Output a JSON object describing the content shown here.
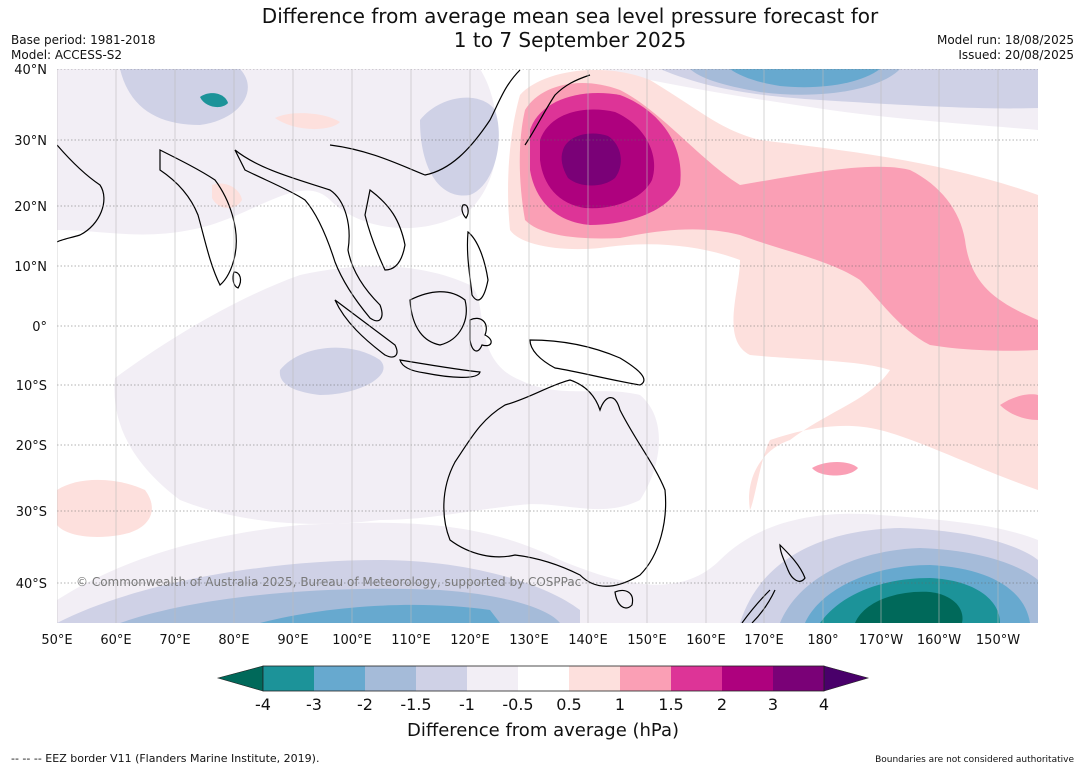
{
  "title_line1": "Difference from average mean sea level pressure forecast for",
  "title_line2": "1 to 7 September 2025",
  "base_period": "Base period: 1981-2018",
  "model": "Model: ACCESS-S2",
  "model_run": "Model run: 18/08/2025",
  "issued": "Issued: 20/08/2025",
  "copyright": "© Commonwealth of Australia 2025, Bureau of Meteorology, supported by COSPPac",
  "lat_labels": [
    "40°N",
    "30°N",
    "20°N",
    "10°N",
    "0°",
    "10°S",
    "20°S",
    "30°S",
    "40°S"
  ],
  "lon_labels": [
    "50°E",
    "60°E",
    "70°E",
    "80°E",
    "90°E",
    "100°E",
    "110°E",
    "120°E",
    "130°E",
    "140°E",
    "150°E",
    "160°E",
    "170°E",
    "180°",
    "170°W",
    "160°W",
    "150°W"
  ],
  "colorbar": {
    "title": "Difference from average (hPa)",
    "tick_labels": [
      "-4",
      "-3",
      "-2",
      "-1.5",
      "-1",
      "-0.5",
      "0.5",
      "1",
      "1.5",
      "2",
      "3",
      "4"
    ],
    "colors": {
      "below_min": "#00695a",
      "n4_n3": "#1c9399",
      "n3_n2": "#67a9cf",
      "n2_n15": "#a5bbd9",
      "n15_n1": "#cfd1e6",
      "n1_n05": "#f2eef5",
      "n05_05": "#ffffff",
      "p05_1": "#fde0dd",
      "p1_15": "#fa9fb5",
      "p15_2": "#dd3497",
      "p2_3": "#ae017e",
      "p3_4": "#7a0177",
      "above_max": "#49006a"
    }
  },
  "footer_left": "-- -- -- EEZ border V11 (Flanders Marine Institute, 2019).",
  "footer_right": "Boundaries are not considered authoritative"
}
